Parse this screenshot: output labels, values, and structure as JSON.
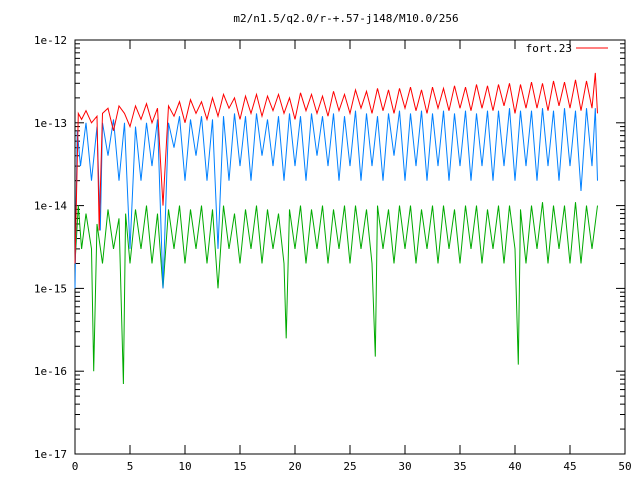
{
  "chart_data": {
    "type": "line",
    "title": "m2/n1.5/q2.0/r-+.57-j148/M10.0/256",
    "xlabel": "",
    "ylabel": "",
    "xlim": [
      0,
      50
    ],
    "ylim": [
      1e-17,
      1e-12
    ],
    "yscale": "log",
    "grid": false,
    "legend_position": "top-right",
    "x_ticks": [
      0,
      5,
      10,
      15,
      20,
      25,
      30,
      35,
      40,
      45,
      50
    ],
    "x_tick_labels": [
      "0",
      "5",
      "10",
      "15",
      "20",
      "25",
      "30",
      "35",
      "40",
      "45",
      "50"
    ],
    "y_ticks": [
      1e-17,
      1e-16,
      1e-15,
      1e-14,
      1e-13,
      1e-12
    ],
    "y_tick_labels": [
      "1e-17",
      "1e-16",
      "1e-15",
      "1e-14",
      "1e-13",
      "1e-12"
    ],
    "series": [
      {
        "name": "fort.23",
        "color": "#ff0000",
        "x": [
          0.0,
          0.3,
          0.6,
          1.0,
          1.5,
          2.0,
          2.2,
          2.5,
          3.0,
          3.5,
          4.0,
          4.5,
          5.0,
          5.5,
          6.0,
          6.5,
          7.0,
          7.5,
          8.0,
          8.5,
          9.0,
          9.5,
          10.0,
          10.5,
          11.0,
          11.5,
          12.0,
          12.5,
          13.0,
          13.5,
          14.0,
          14.5,
          15.0,
          15.5,
          16.0,
          16.5,
          17.0,
          17.5,
          18.0,
          18.5,
          19.0,
          19.5,
          20.0,
          20.5,
          21.0,
          21.5,
          22.0,
          22.5,
          23.0,
          23.5,
          24.0,
          24.5,
          25.0,
          25.5,
          26.0,
          26.5,
          27.0,
          27.5,
          28.0,
          28.5,
          29.0,
          29.5,
          30.0,
          30.5,
          31.0,
          31.5,
          32.0,
          32.5,
          33.0,
          33.5,
          34.0,
          34.5,
          35.0,
          35.5,
          36.0,
          36.5,
          37.0,
          37.5,
          38.0,
          38.5,
          39.0,
          39.5,
          40.0,
          40.5,
          41.0,
          41.5,
          42.0,
          42.5,
          43.0,
          43.5,
          44.0,
          44.5,
          45.0,
          45.5,
          46.0,
          46.5,
          47.0,
          47.3,
          47.5
        ],
        "y": [
          2e-15,
          1.3e-13,
          1.1e-13,
          1.4e-13,
          1e-13,
          1.2e-13,
          5e-15,
          1.3e-13,
          1.5e-13,
          8e-14,
          1.6e-13,
          1.3e-13,
          9e-14,
          1.6e-13,
          1.1e-13,
          1.7e-13,
          1e-13,
          1.5e-13,
          1e-14,
          1.6e-13,
          1.2e-13,
          1.8e-13,
          1e-13,
          1.9e-13,
          1.3e-13,
          1.8e-13,
          1.1e-13,
          2e-13,
          1.2e-13,
          2.2e-13,
          1.5e-13,
          2e-13,
          1.1e-13,
          2.1e-13,
          1.3e-13,
          2.2e-13,
          1.2e-13,
          2.1e-13,
          1.4e-13,
          2.2e-13,
          1.3e-13,
          2e-13,
          1.1e-13,
          2.3e-13,
          1.4e-13,
          2.2e-13,
          1.3e-13,
          2.1e-13,
          1.2e-13,
          2.4e-13,
          1.4e-13,
          2.2e-13,
          1.3e-13,
          2.5e-13,
          1.5e-13,
          2.4e-13,
          1.3e-13,
          2.6e-13,
          1.4e-13,
          2.5e-13,
          1.3e-13,
          2.6e-13,
          1.5e-13,
          2.7e-13,
          1.4e-13,
          2.5e-13,
          1.3e-13,
          2.7e-13,
          1.5e-13,
          2.6e-13,
          1.4e-13,
          2.8e-13,
          1.5e-13,
          2.7e-13,
          1.4e-13,
          2.9e-13,
          1.5e-13,
          2.8e-13,
          1.4e-13,
          2.9e-13,
          1.6e-13,
          3e-13,
          1.3e-13,
          2.9e-13,
          1.5e-13,
          3.1e-13,
          1.5e-13,
          3e-13,
          1.4e-13,
          3.2e-13,
          1.6e-13,
          3.1e-13,
          1.5e-13,
          3.3e-13,
          1.4e-13,
          3.2e-13,
          1.5e-13,
          4e-13,
          1.3e-13
        ]
      },
      {
        "name": "",
        "color": "#0080ff",
        "x": [
          0.0,
          0.2,
          0.5,
          1.0,
          1.5,
          2.0,
          2.3,
          2.5,
          3.0,
          3.5,
          4.0,
          4.5,
          5.0,
          5.5,
          6.0,
          6.5,
          7.0,
          7.5,
          8.0,
          8.5,
          9.0,
          9.5,
          10.0,
          10.5,
          11.0,
          11.5,
          12.0,
          12.5,
          13.0,
          13.5,
          14.0,
          14.5,
          15.0,
          15.5,
          16.0,
          16.5,
          17.0,
          17.5,
          18.0,
          18.5,
          19.0,
          19.5,
          20.0,
          20.5,
          21.0,
          21.5,
          22.0,
          22.5,
          23.0,
          23.5,
          24.0,
          24.5,
          25.0,
          25.5,
          26.0,
          26.5,
          27.0,
          27.5,
          28.0,
          28.5,
          29.0,
          29.5,
          30.0,
          30.5,
          31.0,
          31.5,
          32.0,
          32.5,
          33.0,
          33.5,
          34.0,
          34.5,
          35.0,
          35.5,
          36.0,
          36.5,
          37.0,
          37.5,
          38.0,
          38.5,
          39.0,
          39.5,
          40.0,
          40.5,
          41.0,
          41.5,
          42.0,
          42.5,
          43.0,
          43.5,
          44.0,
          44.5,
          45.0,
          45.5,
          46.0,
          46.5,
          47.0,
          47.3,
          47.5
        ],
        "y": [
          1e-15,
          8e-14,
          3e-14,
          1e-13,
          2e-14,
          9e-14,
          5e-15,
          1e-13,
          4e-14,
          1.1e-13,
          2e-14,
          1e-13,
          3e-15,
          9e-14,
          2e-14,
          1e-13,
          3e-14,
          1.1e-13,
          1e-15,
          1e-13,
          5e-14,
          1.2e-13,
          2e-14,
          1.1e-13,
          4e-14,
          1.2e-13,
          2e-14,
          1.1e-13,
          3e-15,
          1.2e-13,
          2e-14,
          1.3e-13,
          3e-14,
          1.2e-13,
          2e-14,
          1.3e-13,
          4e-14,
          1.1e-13,
          3e-14,
          1.2e-13,
          2e-14,
          1.3e-13,
          3e-14,
          1.2e-13,
          2e-14,
          1.3e-13,
          4e-14,
          1.2e-13,
          3e-14,
          1.3e-13,
          2e-14,
          1.2e-13,
          3e-14,
          1.4e-13,
          2e-14,
          1.3e-13,
          3e-14,
          1.2e-13,
          2e-14,
          1.3e-13,
          4e-14,
          1.4e-13,
          2e-14,
          1.3e-13,
          3e-14,
          1.4e-13,
          2e-14,
          1.3e-13,
          3e-14,
          1.4e-13,
          2e-14,
          1.3e-13,
          3e-14,
          1.4e-13,
          2e-14,
          1.3e-13,
          3e-14,
          1.4e-13,
          2e-14,
          1.4e-13,
          3e-14,
          1.5e-13,
          2e-14,
          1.4e-13,
          3e-14,
          1.4e-13,
          2e-14,
          1.5e-13,
          3e-14,
          1.4e-13,
          2e-14,
          1.5e-13,
          3e-14,
          1.4e-13,
          1.5e-14,
          1.5e-13,
          3e-14,
          1.5e-13,
          2e-14
        ]
      },
      {
        "name": "",
        "color": "#00aa00",
        "x": [
          0.0,
          0.3,
          0.6,
          1.0,
          1.5,
          1.7,
          2.0,
          2.5,
          3.0,
          3.5,
          4.0,
          4.4,
          4.6,
          5.0,
          5.5,
          6.0,
          6.5,
          7.0,
          7.5,
          8.0,
          8.5,
          9.0,
          9.5,
          10.0,
          10.5,
          11.0,
          11.5,
          12.0,
          12.5,
          13.0,
          13.5,
          14.0,
          14.5,
          15.0,
          15.5,
          16.0,
          16.5,
          17.0,
          17.5,
          18.0,
          18.5,
          19.0,
          19.2,
          19.5,
          20.0,
          20.5,
          21.0,
          21.5,
          22.0,
          22.5,
          23.0,
          23.5,
          24.0,
          24.5,
          25.0,
          25.5,
          26.0,
          26.5,
          27.0,
          27.3,
          27.5,
          28.0,
          28.5,
          29.0,
          29.5,
          30.0,
          30.5,
          31.0,
          31.5,
          32.0,
          32.5,
          33.0,
          33.5,
          34.0,
          34.5,
          35.0,
          35.5,
          36.0,
          36.5,
          37.0,
          37.5,
          38.0,
          38.5,
          39.0,
          39.5,
          40.0,
          40.3,
          40.5,
          41.0,
          41.5,
          42.0,
          42.5,
          43.0,
          43.5,
          44.0,
          44.5,
          45.0,
          45.5,
          46.0,
          46.5,
          47.0,
          47.5
        ],
        "y": [
          2e-15,
          1e-14,
          3e-15,
          8e-15,
          3e-15,
          1e-16,
          6e-15,
          2e-15,
          9e-15,
          3e-15,
          7e-15,
          7e-17,
          8e-15,
          2e-15,
          9e-15,
          3e-15,
          1e-14,
          2e-15,
          8e-15,
          1e-15,
          9e-15,
          3e-15,
          1e-14,
          2e-15,
          9e-15,
          3e-15,
          1e-14,
          2e-15,
          9e-15,
          1e-15,
          1e-14,
          3e-15,
          8e-15,
          2e-15,
          9e-15,
          3e-15,
          1e-14,
          2e-15,
          9e-15,
          3e-15,
          8e-15,
          2e-15,
          2.5e-16,
          9e-15,
          3e-15,
          1e-14,
          2e-15,
          9e-15,
          3e-15,
          1e-14,
          2e-15,
          9e-15,
          3e-15,
          1e-14,
          2e-15,
          1e-14,
          3e-15,
          9e-15,
          2e-15,
          1.5e-16,
          1e-14,
          3e-15,
          9e-15,
          2e-15,
          1e-14,
          3e-15,
          1e-14,
          2e-15,
          9e-15,
          3e-15,
          1e-14,
          2e-15,
          1e-14,
          3e-15,
          9e-15,
          2e-15,
          1e-14,
          3e-15,
          1e-14,
          2e-15,
          9e-15,
          3e-15,
          1e-14,
          2e-15,
          1e-14,
          3e-15,
          1.2e-16,
          9e-15,
          2e-15,
          1e-14,
          3e-15,
          1.1e-14,
          2e-15,
          1e-14,
          3e-15,
          1e-14,
          2e-15,
          1.1e-14,
          2e-15,
          1e-14,
          3e-15,
          1e-14
        ]
      }
    ]
  }
}
